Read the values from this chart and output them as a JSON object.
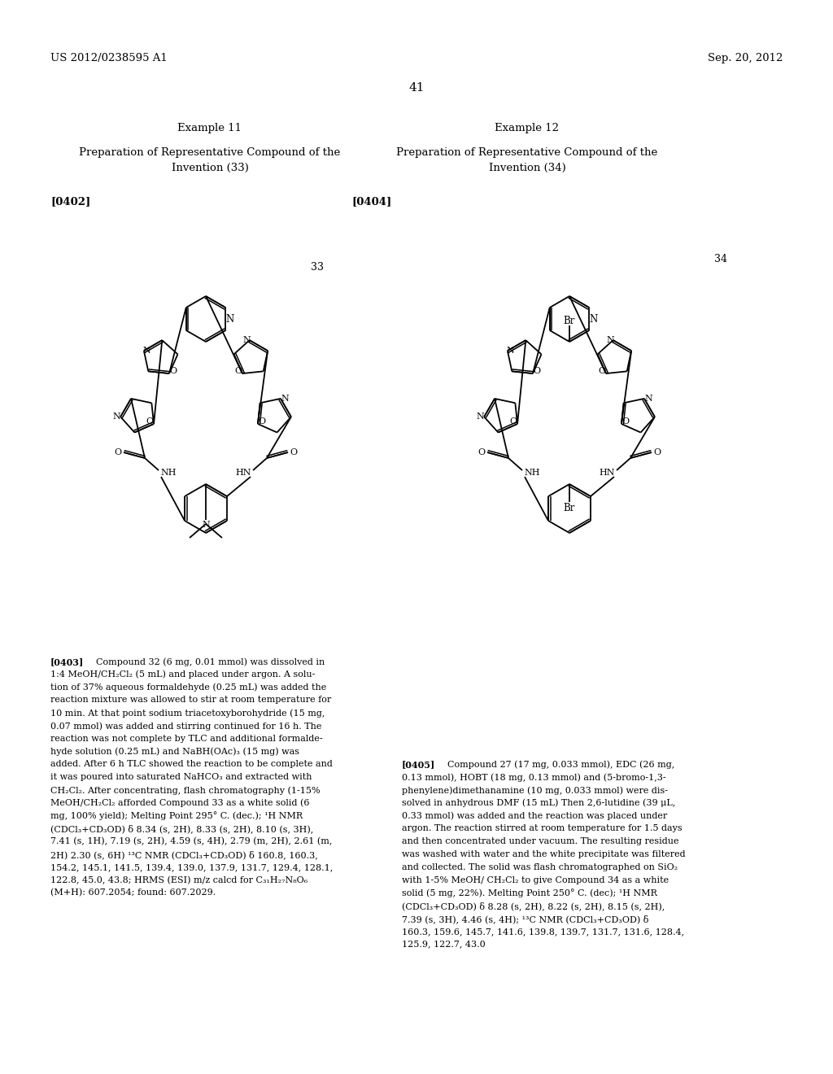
{
  "bg_color": "#ffffff",
  "header_left": "US 2012/0238595 A1",
  "header_right": "Sep. 20, 2012",
  "page_number": "41",
  "example11_title": "Example 11",
  "example11_sub1": "Preparation of Representative Compound of the",
  "example11_sub2": "Invention (33)",
  "example12_title": "Example 12",
  "example12_sub1": "Preparation of Representative Compound of the",
  "example12_sub2": "Invention (34)",
  "tag0402": "[0402]",
  "tag0404": "[0404]",
  "label33": "33",
  "label34": "34",
  "tag0403": "[0403]",
  "text0403": [
    [
      "bold",
      "[0403]"
    ],
    [
      "normal",
      "  Compound 32 (6 mg, 0.01 mmol) was dissolved in"
    ]
  ],
  "text0403_lines": [
    "1:4 MeOH/CH₂Cl₂ (5 mL) and placed under argon. A solu-",
    "tion of 37% aqueous formaldehyde (0.25 mL) was added the",
    "reaction mixture was allowed to stir at room temperature for",
    "10 min. At that point sodium triacetoxyborohydride (15 mg,",
    "0.07 mmol) was added and stirring continued for 16 h. The",
    "reaction was not complete by TLC and additional formalde-",
    "hyde solution (0.25 mL) and NaBH(OAc)₃ (15 mg) was",
    "added. After 6 h TLC showed the reaction to be complete and",
    "it was poured into saturated NaHCO₃ and extracted with",
    "CH₂Cl₂. After concentrating, flash chromatography (1-15%",
    "MeOH/CH₂Cl₂ afforded Compound 33 as a white solid (6",
    "mg, 100% yield); Melting Point 295° C. (dec.); ¹H NMR",
    "(CDCl₃+CD₃OD) δ 8.34 (s, 2H), 8.33 (s, 2H), 8.10 (s, 3H),",
    "7.41 (s, 1H), 7.19 (s, 2H), 4.59 (s, 4H), 2.79 (m, 2H), 2.61 (m,",
    "2H) 2.30 (s, 6H) ¹³C NMR (CDCl₃+CD₃OD) δ 160.8, 160.3,",
    "154.2, 145.1, 141.5, 139.4, 139.0, 137.9, 131.7, 129.4, 128.1,",
    "122.8, 45.0, 43.8; HRMS (ESI) m/z calcd for C₃₁H₂₇N₈O₆",
    "(M+H): 607.2054; found: 607.2029."
  ],
  "tag0405": "[0405]",
  "text0405_line0": "Compound 27 (17 mg, 0.033 mmol), EDC (26 mg,",
  "text0405_lines": [
    "0.13 mmol), HOBT (18 mg, 0.13 mmol) and (5-bromo-1,3-",
    "phenylene)dimethanamine (10 mg, 0.033 mmol) were dis-",
    "solved in anhydrous DMF (15 mL) Then 2,6-lutidine (39 μL,",
    "0.33 mmol) was added and the reaction was placed under",
    "argon. The reaction stirred at room temperature for 1.5 days",
    "and then concentrated under vacuum. The resulting residue",
    "was washed with water and the white precipitate was filtered",
    "and collected. The solid was flash chromatographed on SiO₂",
    "with 1-5% MeOH/ CH₂Cl₂ to give Compound 34 as a white",
    "solid (5 mg, 22%). Melting Point 250° C. (dec); ¹H NMR",
    "(CDCl₃+CD₃OD) δ 8.28 (s, 2H), 8.22 (s, 2H), 8.15 (s, 2H),",
    "7.39 (s, 3H), 4.46 (s, 4H); ¹³C NMR (CDCl₃+CD₃OD) δ",
    "160.3, 159.6, 145.7, 141.6, 139.8, 139.7, 131.7, 131.6, 128.4,",
    "125.9, 122.7, 43.0"
  ]
}
